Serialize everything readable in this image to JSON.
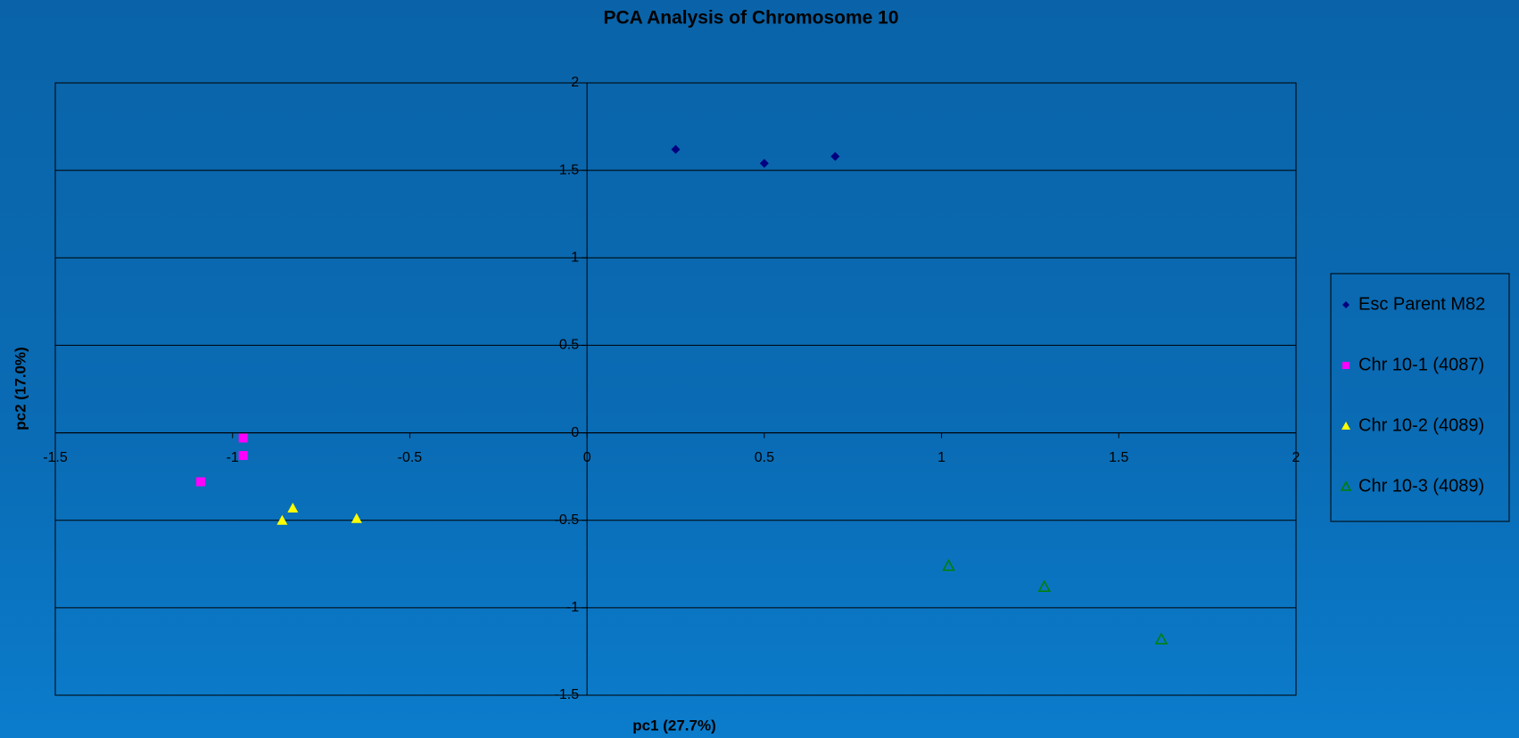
{
  "chart_data": {
    "type": "scatter",
    "title": "PCA Analysis of Chromosome 10",
    "x_label": "pc1 (27.7%)",
    "y_label": "pc2 (17.0%)",
    "xlim": [
      -1.5,
      2
    ],
    "ylim": [
      -1.5,
      2
    ],
    "xticks": [
      -1.5,
      -1,
      -0.5,
      0,
      0.5,
      1,
      1.5,
      2
    ],
    "yticks": [
      -1.5,
      -1,
      -0.5,
      0,
      0.5,
      1,
      1.5,
      2
    ],
    "grid": true,
    "legend": "right",
    "series": [
      {
        "name": "Esc Parent M82",
        "color": "#000080",
        "marker": "diamond",
        "x": [
          0.25,
          0.5,
          0.7
        ],
        "y": [
          1.62,
          1.54,
          1.58
        ]
      },
      {
        "name": "Chr 10-1 (4087)",
        "color": "#ff00ff",
        "marker": "square",
        "x": [
          -0.97,
          -0.97,
          -1.09
        ],
        "y": [
          -0.03,
          -0.13,
          -0.28
        ]
      },
      {
        "name": "Chr 10-2 (4089)",
        "color": "#ffff00",
        "marker": "triangle",
        "x": [
          -0.86,
          -0.83,
          -0.65
        ],
        "y": [
          -0.5,
          -0.43,
          -0.49
        ]
      },
      {
        "name": "Chr 10-3 (4089)",
        "color": "#008000",
        "marker": "triangle-open",
        "x": [
          1.02,
          1.29,
          1.62
        ],
        "y": [
          -0.76,
          -0.88,
          -1.18
        ]
      }
    ]
  }
}
